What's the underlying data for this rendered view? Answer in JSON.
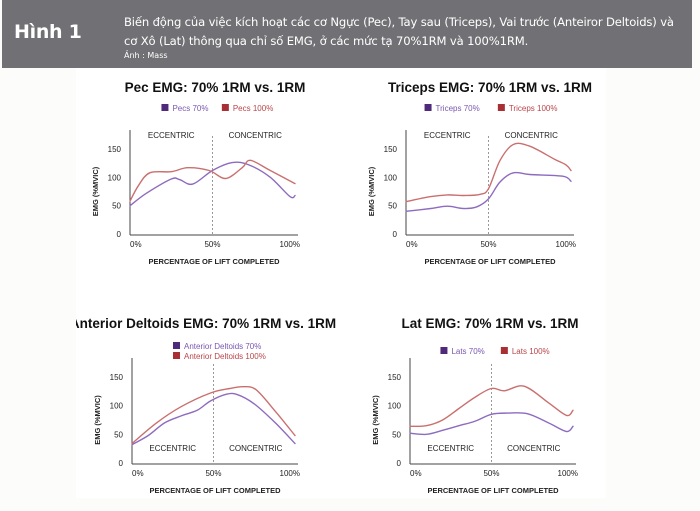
{
  "header": {
    "figure_label": "Hình 1",
    "caption": "Biến động của việc kích hoạt các cơ Ngực (Pec), Tay sau (Triceps), Vai trước (Anteiror Deltoids) và cơ Xô (Lat) thông qua chỉ số EMG, ở các mức tạ 70%1RM và 100%1RM.",
    "credit": "Ảnh : Mass"
  },
  "colors": {
    "series_70": "#8d6bbf",
    "series_100": "#c9706f",
    "swatch_70": "#4f2a7a",
    "swatch_100": "#a83034",
    "legend_text_70": "#7a58b0",
    "legend_text_100": "#b9454a"
  },
  "chart_data": [
    {
      "type": "line",
      "title": "Pec EMG: 70% 1RM vs. 1RM",
      "xlabel": "PERCENTAGE OF LIFT COMPLETED",
      "ylabel": "EMG (%MVIC)",
      "xlim": [
        0,
        100
      ],
      "ylim": [
        0,
        175
      ],
      "yticks": [
        0,
        50,
        100,
        150
      ],
      "xticks": [
        "0%",
        "50%",
        "100%"
      ],
      "phases": {
        "left": "ECCENTRIC",
        "right": "CONCENTRIC",
        "position": "top"
      },
      "divider_x": 50,
      "legend_layout": "row",
      "series": [
        {
          "name": "Pecs 70%",
          "x": [
            0,
            10,
            25,
            30,
            38,
            50,
            62,
            72,
            85,
            97,
            100
          ],
          "y": [
            50,
            72,
            97,
            96,
            88,
            112,
            126,
            122,
            100,
            66,
            68
          ]
        },
        {
          "name": "Pecs 100%",
          "x": [
            0,
            5,
            12,
            25,
            35,
            48,
            58,
            68,
            73,
            85,
            100
          ],
          "y": [
            58,
            85,
            108,
            110,
            117,
            112,
            98,
            117,
            130,
            112,
            89
          ]
        }
      ]
    },
    {
      "type": "line",
      "title": "Triceps EMG: 70% 1RM vs. 1RM",
      "xlabel": "PERCENTAGE OF LIFT COMPLETED",
      "ylabel": "EMG (%MVIC)",
      "xlim": [
        0,
        100
      ],
      "ylim": [
        0,
        175
      ],
      "yticks": [
        0,
        50,
        100,
        150
      ],
      "xticks": [
        "0%",
        "50%",
        "100%"
      ],
      "phases": {
        "left": "ECCENTRIC",
        "right": "CONCENTRIC",
        "position": "top"
      },
      "divider_x": 50,
      "legend_layout": "row",
      "series": [
        {
          "name": "Triceps 70%",
          "x": [
            0,
            15,
            25,
            35,
            43,
            50,
            57,
            65,
            75,
            95,
            100
          ],
          "y": [
            40,
            45,
            49,
            45,
            48,
            62,
            92,
            108,
            105,
            102,
            93
          ]
        },
        {
          "name": "Triceps 100%",
          "x": [
            0,
            15,
            25,
            35,
            45,
            50,
            57,
            65,
            75,
            90,
            97,
            100
          ],
          "y": [
            57,
            66,
            69,
            68,
            70,
            80,
            130,
            158,
            155,
            132,
            122,
            112
          ]
        }
      ]
    },
    {
      "type": "line",
      "title": "Anterior Deltoids EMG: 70% 1RM vs. 1RM",
      "xlabel": "PERCENTAGE OF LIFT COMPLETED",
      "ylabel": "EMG (%MVIC)",
      "xlim": [
        0,
        100
      ],
      "ylim": [
        0,
        175
      ],
      "yticks": [
        0,
        50,
        100,
        150
      ],
      "xticks": [
        "0%",
        "50%",
        "100%"
      ],
      "phases": {
        "left": "ECCENTRIC",
        "right": "CONCENTRIC",
        "position": "bottom"
      },
      "divider_x": 50,
      "legend_layout": "column",
      "series": [
        {
          "name": "Anterior Deltoids 70%",
          "x": [
            0,
            10,
            20,
            30,
            40,
            48,
            58,
            65,
            75,
            88,
            100
          ],
          "y": [
            32,
            48,
            70,
            82,
            92,
            108,
            120,
            119,
            103,
            70,
            34
          ]
        },
        {
          "name": "Anterior Deltoids 100%",
          "x": [
            0,
            15,
            30,
            48,
            60,
            68,
            76,
            88,
            100
          ],
          "y": [
            34,
            70,
            98,
            122,
            130,
            133,
            128,
            90,
            48
          ]
        }
      ]
    },
    {
      "type": "line",
      "title": "Lat EMG: 70% 1RM vs. 1RM",
      "xlabel": "PERCENTAGE OF LIFT COMPLETED",
      "ylabel": "EMG (%MVIC)",
      "xlim": [
        0,
        100
      ],
      "ylim": [
        0,
        175
      ],
      "yticks": [
        0,
        50,
        100,
        150
      ],
      "xticks": [
        "0%",
        "50%",
        "100%"
      ],
      "phases": {
        "left": "ECCENTRIC",
        "right": "CONCENTRIC",
        "position": "bottom"
      },
      "divider_x": 50,
      "legend_layout": "row",
      "series": [
        {
          "name": "Lats 70%",
          "x": [
            0,
            10,
            20,
            30,
            40,
            50,
            60,
            72,
            85,
            96,
            100
          ],
          "y": [
            52,
            50,
            57,
            65,
            73,
            85,
            87,
            86,
            70,
            55,
            64
          ]
        },
        {
          "name": "Lats 100%",
          "x": [
            0,
            10,
            20,
            30,
            40,
            50,
            58,
            70,
            85,
            96,
            100
          ],
          "y": [
            64,
            65,
            75,
            95,
            115,
            130,
            126,
            134,
            105,
            83,
            92
          ]
        }
      ]
    }
  ]
}
